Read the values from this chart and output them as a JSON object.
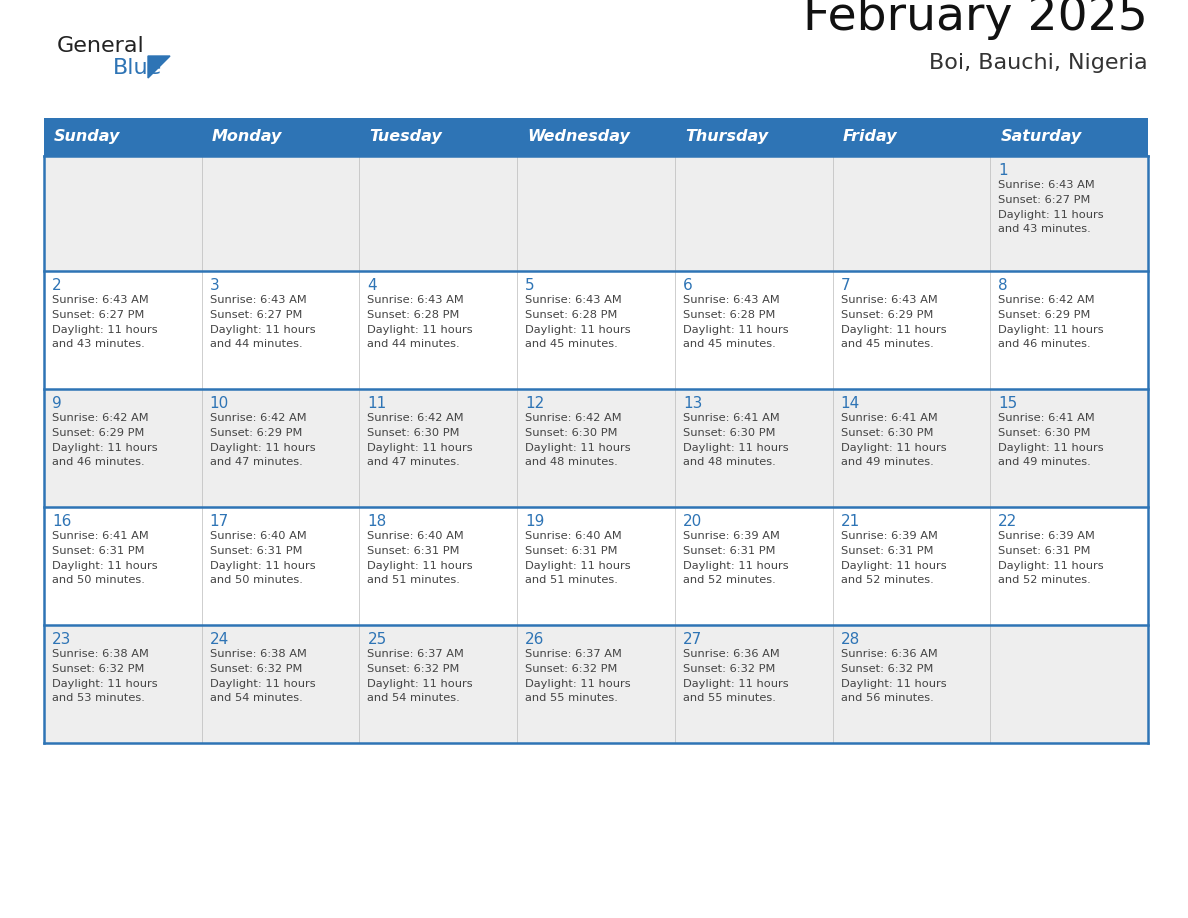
{
  "title": "February 2025",
  "subtitle": "Boi, Bauchi, Nigeria",
  "header_bg": "#2E74B5",
  "header_text_color": "#FFFFFF",
  "days_of_week": [
    "Sunday",
    "Monday",
    "Tuesday",
    "Wednesday",
    "Thursday",
    "Friday",
    "Saturday"
  ],
  "cell_bg_light": "#EEEEEE",
  "cell_bg_white": "#FFFFFF",
  "cell_line_color": "#2E74B5",
  "day_num_color": "#2E74B5",
  "text_color": "#444444",
  "logo_general_color": "#222222",
  "logo_blue_color": "#2E74B5",
  "logo_triangle_color": "#2E74B5",
  "calendar_data": [
    [
      {
        "day": null,
        "sunrise": null,
        "sunset": null,
        "daylight_line1": null,
        "daylight_line2": null
      },
      {
        "day": null,
        "sunrise": null,
        "sunset": null,
        "daylight_line1": null,
        "daylight_line2": null
      },
      {
        "day": null,
        "sunrise": null,
        "sunset": null,
        "daylight_line1": null,
        "daylight_line2": null
      },
      {
        "day": null,
        "sunrise": null,
        "sunset": null,
        "daylight_line1": null,
        "daylight_line2": null
      },
      {
        "day": null,
        "sunrise": null,
        "sunset": null,
        "daylight_line1": null,
        "daylight_line2": null
      },
      {
        "day": null,
        "sunrise": null,
        "sunset": null,
        "daylight_line1": null,
        "daylight_line2": null
      },
      {
        "day": 1,
        "sunrise": "6:43 AM",
        "sunset": "6:27 PM",
        "daylight_line1": "Daylight: 11 hours",
        "daylight_line2": "and 43 minutes."
      }
    ],
    [
      {
        "day": 2,
        "sunrise": "6:43 AM",
        "sunset": "6:27 PM",
        "daylight_line1": "Daylight: 11 hours",
        "daylight_line2": "and 43 minutes."
      },
      {
        "day": 3,
        "sunrise": "6:43 AM",
        "sunset": "6:27 PM",
        "daylight_line1": "Daylight: 11 hours",
        "daylight_line2": "and 44 minutes."
      },
      {
        "day": 4,
        "sunrise": "6:43 AM",
        "sunset": "6:28 PM",
        "daylight_line1": "Daylight: 11 hours",
        "daylight_line2": "and 44 minutes."
      },
      {
        "day": 5,
        "sunrise": "6:43 AM",
        "sunset": "6:28 PM",
        "daylight_line1": "Daylight: 11 hours",
        "daylight_line2": "and 45 minutes."
      },
      {
        "day": 6,
        "sunrise": "6:43 AM",
        "sunset": "6:28 PM",
        "daylight_line1": "Daylight: 11 hours",
        "daylight_line2": "and 45 minutes."
      },
      {
        "day": 7,
        "sunrise": "6:43 AM",
        "sunset": "6:29 PM",
        "daylight_line1": "Daylight: 11 hours",
        "daylight_line2": "and 45 minutes."
      },
      {
        "day": 8,
        "sunrise": "6:42 AM",
        "sunset": "6:29 PM",
        "daylight_line1": "Daylight: 11 hours",
        "daylight_line2": "and 46 minutes."
      }
    ],
    [
      {
        "day": 9,
        "sunrise": "6:42 AM",
        "sunset": "6:29 PM",
        "daylight_line1": "Daylight: 11 hours",
        "daylight_line2": "and 46 minutes."
      },
      {
        "day": 10,
        "sunrise": "6:42 AM",
        "sunset": "6:29 PM",
        "daylight_line1": "Daylight: 11 hours",
        "daylight_line2": "and 47 minutes."
      },
      {
        "day": 11,
        "sunrise": "6:42 AM",
        "sunset": "6:30 PM",
        "daylight_line1": "Daylight: 11 hours",
        "daylight_line2": "and 47 minutes."
      },
      {
        "day": 12,
        "sunrise": "6:42 AM",
        "sunset": "6:30 PM",
        "daylight_line1": "Daylight: 11 hours",
        "daylight_line2": "and 48 minutes."
      },
      {
        "day": 13,
        "sunrise": "6:41 AM",
        "sunset": "6:30 PM",
        "daylight_line1": "Daylight: 11 hours",
        "daylight_line2": "and 48 minutes."
      },
      {
        "day": 14,
        "sunrise": "6:41 AM",
        "sunset": "6:30 PM",
        "daylight_line1": "Daylight: 11 hours",
        "daylight_line2": "and 49 minutes."
      },
      {
        "day": 15,
        "sunrise": "6:41 AM",
        "sunset": "6:30 PM",
        "daylight_line1": "Daylight: 11 hours",
        "daylight_line2": "and 49 minutes."
      }
    ],
    [
      {
        "day": 16,
        "sunrise": "6:41 AM",
        "sunset": "6:31 PM",
        "daylight_line1": "Daylight: 11 hours",
        "daylight_line2": "and 50 minutes."
      },
      {
        "day": 17,
        "sunrise": "6:40 AM",
        "sunset": "6:31 PM",
        "daylight_line1": "Daylight: 11 hours",
        "daylight_line2": "and 50 minutes."
      },
      {
        "day": 18,
        "sunrise": "6:40 AM",
        "sunset": "6:31 PM",
        "daylight_line1": "Daylight: 11 hours",
        "daylight_line2": "and 51 minutes."
      },
      {
        "day": 19,
        "sunrise": "6:40 AM",
        "sunset": "6:31 PM",
        "daylight_line1": "Daylight: 11 hours",
        "daylight_line2": "and 51 minutes."
      },
      {
        "day": 20,
        "sunrise": "6:39 AM",
        "sunset": "6:31 PM",
        "daylight_line1": "Daylight: 11 hours",
        "daylight_line2": "and 52 minutes."
      },
      {
        "day": 21,
        "sunrise": "6:39 AM",
        "sunset": "6:31 PM",
        "daylight_line1": "Daylight: 11 hours",
        "daylight_line2": "and 52 minutes."
      },
      {
        "day": 22,
        "sunrise": "6:39 AM",
        "sunset": "6:31 PM",
        "daylight_line1": "Daylight: 11 hours",
        "daylight_line2": "and 52 minutes."
      }
    ],
    [
      {
        "day": 23,
        "sunrise": "6:38 AM",
        "sunset": "6:32 PM",
        "daylight_line1": "Daylight: 11 hours",
        "daylight_line2": "and 53 minutes."
      },
      {
        "day": 24,
        "sunrise": "6:38 AM",
        "sunset": "6:32 PM",
        "daylight_line1": "Daylight: 11 hours",
        "daylight_line2": "and 54 minutes."
      },
      {
        "day": 25,
        "sunrise": "6:37 AM",
        "sunset": "6:32 PM",
        "daylight_line1": "Daylight: 11 hours",
        "daylight_line2": "and 54 minutes."
      },
      {
        "day": 26,
        "sunrise": "6:37 AM",
        "sunset": "6:32 PM",
        "daylight_line1": "Daylight: 11 hours",
        "daylight_line2": "and 55 minutes."
      },
      {
        "day": 27,
        "sunrise": "6:36 AM",
        "sunset": "6:32 PM",
        "daylight_line1": "Daylight: 11 hours",
        "daylight_line2": "and 55 minutes."
      },
      {
        "day": 28,
        "sunrise": "6:36 AM",
        "sunset": "6:32 PM",
        "daylight_line1": "Daylight: 11 hours",
        "daylight_line2": "and 56 minutes."
      },
      {
        "day": null,
        "sunrise": null,
        "sunset": null,
        "daylight_line1": null,
        "daylight_line2": null
      }
    ]
  ]
}
